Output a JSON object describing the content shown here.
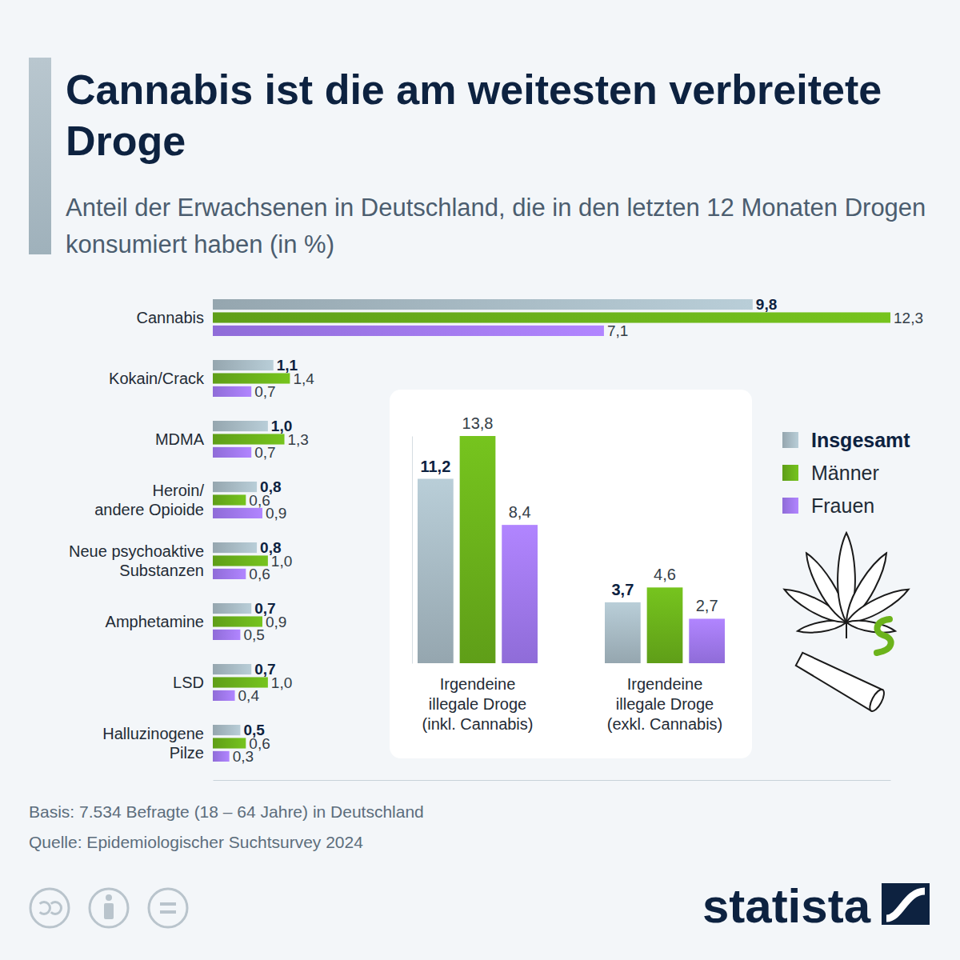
{
  "chart_data": [
    {
      "type": "bar",
      "orientation": "horizontal",
      "title": "Cannabis ist die am weitesten verbreitete Droge",
      "subtitle": "Anteil der Erwachsenen in Deutschland, die in den letzten 12 Monaten Drogen konsumiert haben (in %)",
      "categories": [
        "Cannabis",
        "Kokain/Crack",
        "MDMA",
        "Heroin/\nandere Opioide",
        "Neue psychoaktive\nSubstanzen",
        "Amphetamine",
        "LSD",
        "Halluzinogene\nPilze"
      ],
      "series": [
        {
          "name": "Insgesamt",
          "color": "#a9bcc6",
          "values": [
            9.8,
            1.1,
            1.0,
            0.8,
            0.8,
            0.7,
            0.7,
            0.5
          ],
          "value_labels": [
            "9,8",
            "1,1",
            "1,0",
            "0,8",
            "0,8",
            "0,7",
            "0,7",
            "0,5"
          ]
        },
        {
          "name": "Männer",
          "color": "#6cb31b",
          "values": [
            12.3,
            1.4,
            1.3,
            0.6,
            1.0,
            0.9,
            1.0,
            0.6
          ],
          "value_labels": [
            "12,3",
            "1,4",
            "1,3",
            "0,6",
            "1,0",
            "0,9",
            "1,0",
            "0,6"
          ]
        },
        {
          "name": "Frauen",
          "color": "#a27af5",
          "values": [
            7.1,
            0.7,
            0.7,
            0.9,
            0.6,
            0.5,
            0.4,
            0.3
          ],
          "value_labels": [
            "7,1",
            "0,7",
            "0,7",
            "0,9",
            "0,6",
            "0,5",
            "0,4",
            "0,3"
          ]
        }
      ],
      "xlim": [
        0,
        12.3
      ],
      "data_labels": true,
      "tick_labels": "y",
      "legend": "right"
    },
    {
      "type": "bar",
      "categories": [
        "Irgendeine\nillegale Droge\n(inkl. Cannabis)",
        "Irgendeine\nillegale Droge\n(exkl. Cannabis)"
      ],
      "series": [
        {
          "color": "#a9bcc6",
          "values": [
            11.2,
            3.7
          ],
          "value_labels": [
            "11,2",
            "3,7"
          ]
        },
        {
          "color": "#6cb31b",
          "values": [
            13.8,
            4.6
          ],
          "value_labels": [
            "13,8",
            "4,6"
          ]
        },
        {
          "color": "#a27af5",
          "values": [
            8.4,
            2.7
          ],
          "value_labels": [
            "8,4",
            "2,7"
          ]
        }
      ],
      "ylim": [
        0,
        13.8
      ],
      "data_labels": true,
      "tick_labels": "x"
    }
  ],
  "footer": [
    "Basis: 7.534 Befragte (18 – 64 Jahre) in Deutschland",
    "Quelle: Epidemiologischer Suchtsurvey 2024"
  ],
  "brand": "statista"
}
